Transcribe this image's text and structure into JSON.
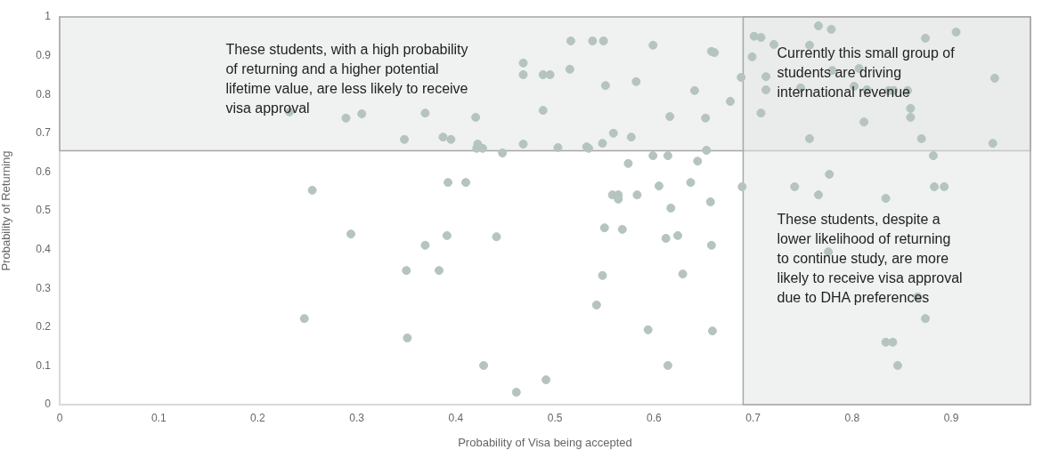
{
  "chart_data": {
    "type": "scatter",
    "xlabel": "Probability of Visa being accepted",
    "ylabel": "Probability of Returning",
    "xlim": [
      0,
      0.98
    ],
    "xticks": [
      0,
      0.1,
      0.2,
      0.3,
      0.4,
      0.5,
      0.6,
      0.7,
      0.8,
      0.9
    ],
    "ylim": [
      0,
      1
    ],
    "yticks": [
      0,
      0.1,
      0.2,
      0.3,
      0.4,
      0.5,
      0.6,
      0.7,
      0.8,
      0.9,
      1
    ],
    "grid": false,
    "legend": false,
    "marker": "circle",
    "bands": [
      {
        "axis": "y",
        "from": 0.655,
        "to": 1,
        "color": "#e1e6e4"
      },
      {
        "axis": "x",
        "from": 0.69,
        "to": 0.98,
        "color": "#e1e6e4"
      }
    ],
    "annotations": [
      "These students, with a high probability\nof returning and a higher potential\nlifetime value, are less likely to receive\nvisa approval",
      "Currently this small group of\nstudents are driving\ninternational revenue",
      "These students, despite a\nlower likelihood of returning\nto continue study, are more\nlikely to receive visa approval\ndue to DHA preferences"
    ],
    "series": [
      {
        "color": "#b5c4bf",
        "x": [
          0.232,
          0.289,
          0.305,
          0.369,
          0.516,
          0.538,
          0.549,
          0.599,
          0.658,
          0.661,
          0.468,
          0.468,
          0.488,
          0.495,
          0.515,
          0.551,
          0.582,
          0.641,
          0.42,
          0.488,
          0.616,
          0.652,
          0.348,
          0.387,
          0.395,
          0.422,
          0.427,
          0.421,
          0.447,
          0.468,
          0.503,
          0.532,
          0.534,
          0.548,
          0.559,
          0.577,
          0.653,
          0.599,
          0.614,
          0.574,
          0.644,
          0.392,
          0.41,
          0.637,
          0.605,
          0.558,
          0.564,
          0.564,
          0.583,
          0.617,
          0.657,
          0.766,
          0.779,
          0.905,
          0.701,
          0.708,
          0.721,
          0.757,
          0.874,
          0.699,
          0.688,
          0.713,
          0.713,
          0.677,
          0.708,
          0.748,
          0.78,
          0.807,
          0.802,
          0.815,
          0.837,
          0.842,
          0.856,
          0.859,
          0.859,
          0.812,
          0.944,
          0.757,
          0.87,
          0.942,
          0.882,
          0.777,
          0.689,
          0.742,
          0.766,
          0.834,
          0.883,
          0.893,
          0.776,
          0.866,
          0.874,
          0.834,
          0.841,
          0.846,
          0.55,
          0.568,
          0.369,
          0.391,
          0.441,
          0.612,
          0.624,
          0.658,
          0.35,
          0.383,
          0.548,
          0.629,
          0.542,
          0.351,
          0.594,
          0.659,
          0.428,
          0.614,
          0.491,
          0.461,
          0.294,
          0.247,
          0.255
        ],
        "values": [
          0.755,
          0.739,
          0.75,
          0.752,
          0.938,
          0.938,
          0.938,
          0.927,
          0.911,
          0.908,
          0.881,
          0.851,
          0.851,
          0.851,
          0.865,
          0.823,
          0.833,
          0.81,
          0.741,
          0.759,
          0.743,
          0.739,
          0.684,
          0.69,
          0.684,
          0.672,
          0.661,
          0.661,
          0.649,
          0.672,
          0.663,
          0.665,
          0.661,
          0.674,
          0.7,
          0.69,
          0.656,
          0.642,
          0.642,
          0.622,
          0.628,
          0.573,
          0.573,
          0.573,
          0.564,
          0.541,
          0.541,
          0.53,
          0.541,
          0.507,
          0.523,
          0.977,
          0.968,
          0.961,
          0.95,
          0.947,
          0.929,
          0.927,
          0.945,
          0.897,
          0.844,
          0.846,
          0.812,
          0.782,
          0.752,
          0.817,
          0.862,
          0.867,
          0.821,
          0.812,
          0.81,
          0.81,
          0.81,
          0.764,
          0.741,
          0.729,
          0.842,
          0.686,
          0.686,
          0.674,
          0.642,
          0.594,
          0.562,
          0.562,
          0.541,
          0.532,
          0.562,
          0.562,
          0.394,
          0.278,
          0.222,
          0.161,
          0.161,
          0.101,
          0.456,
          0.452,
          0.411,
          0.436,
          0.433,
          0.429,
          0.436,
          0.411,
          0.346,
          0.346,
          0.333,
          0.337,
          0.257,
          0.172,
          0.193,
          0.19,
          0.101,
          0.101,
          0.064,
          0.032,
          0.44,
          0.222,
          0.553
        ]
      }
    ]
  }
}
